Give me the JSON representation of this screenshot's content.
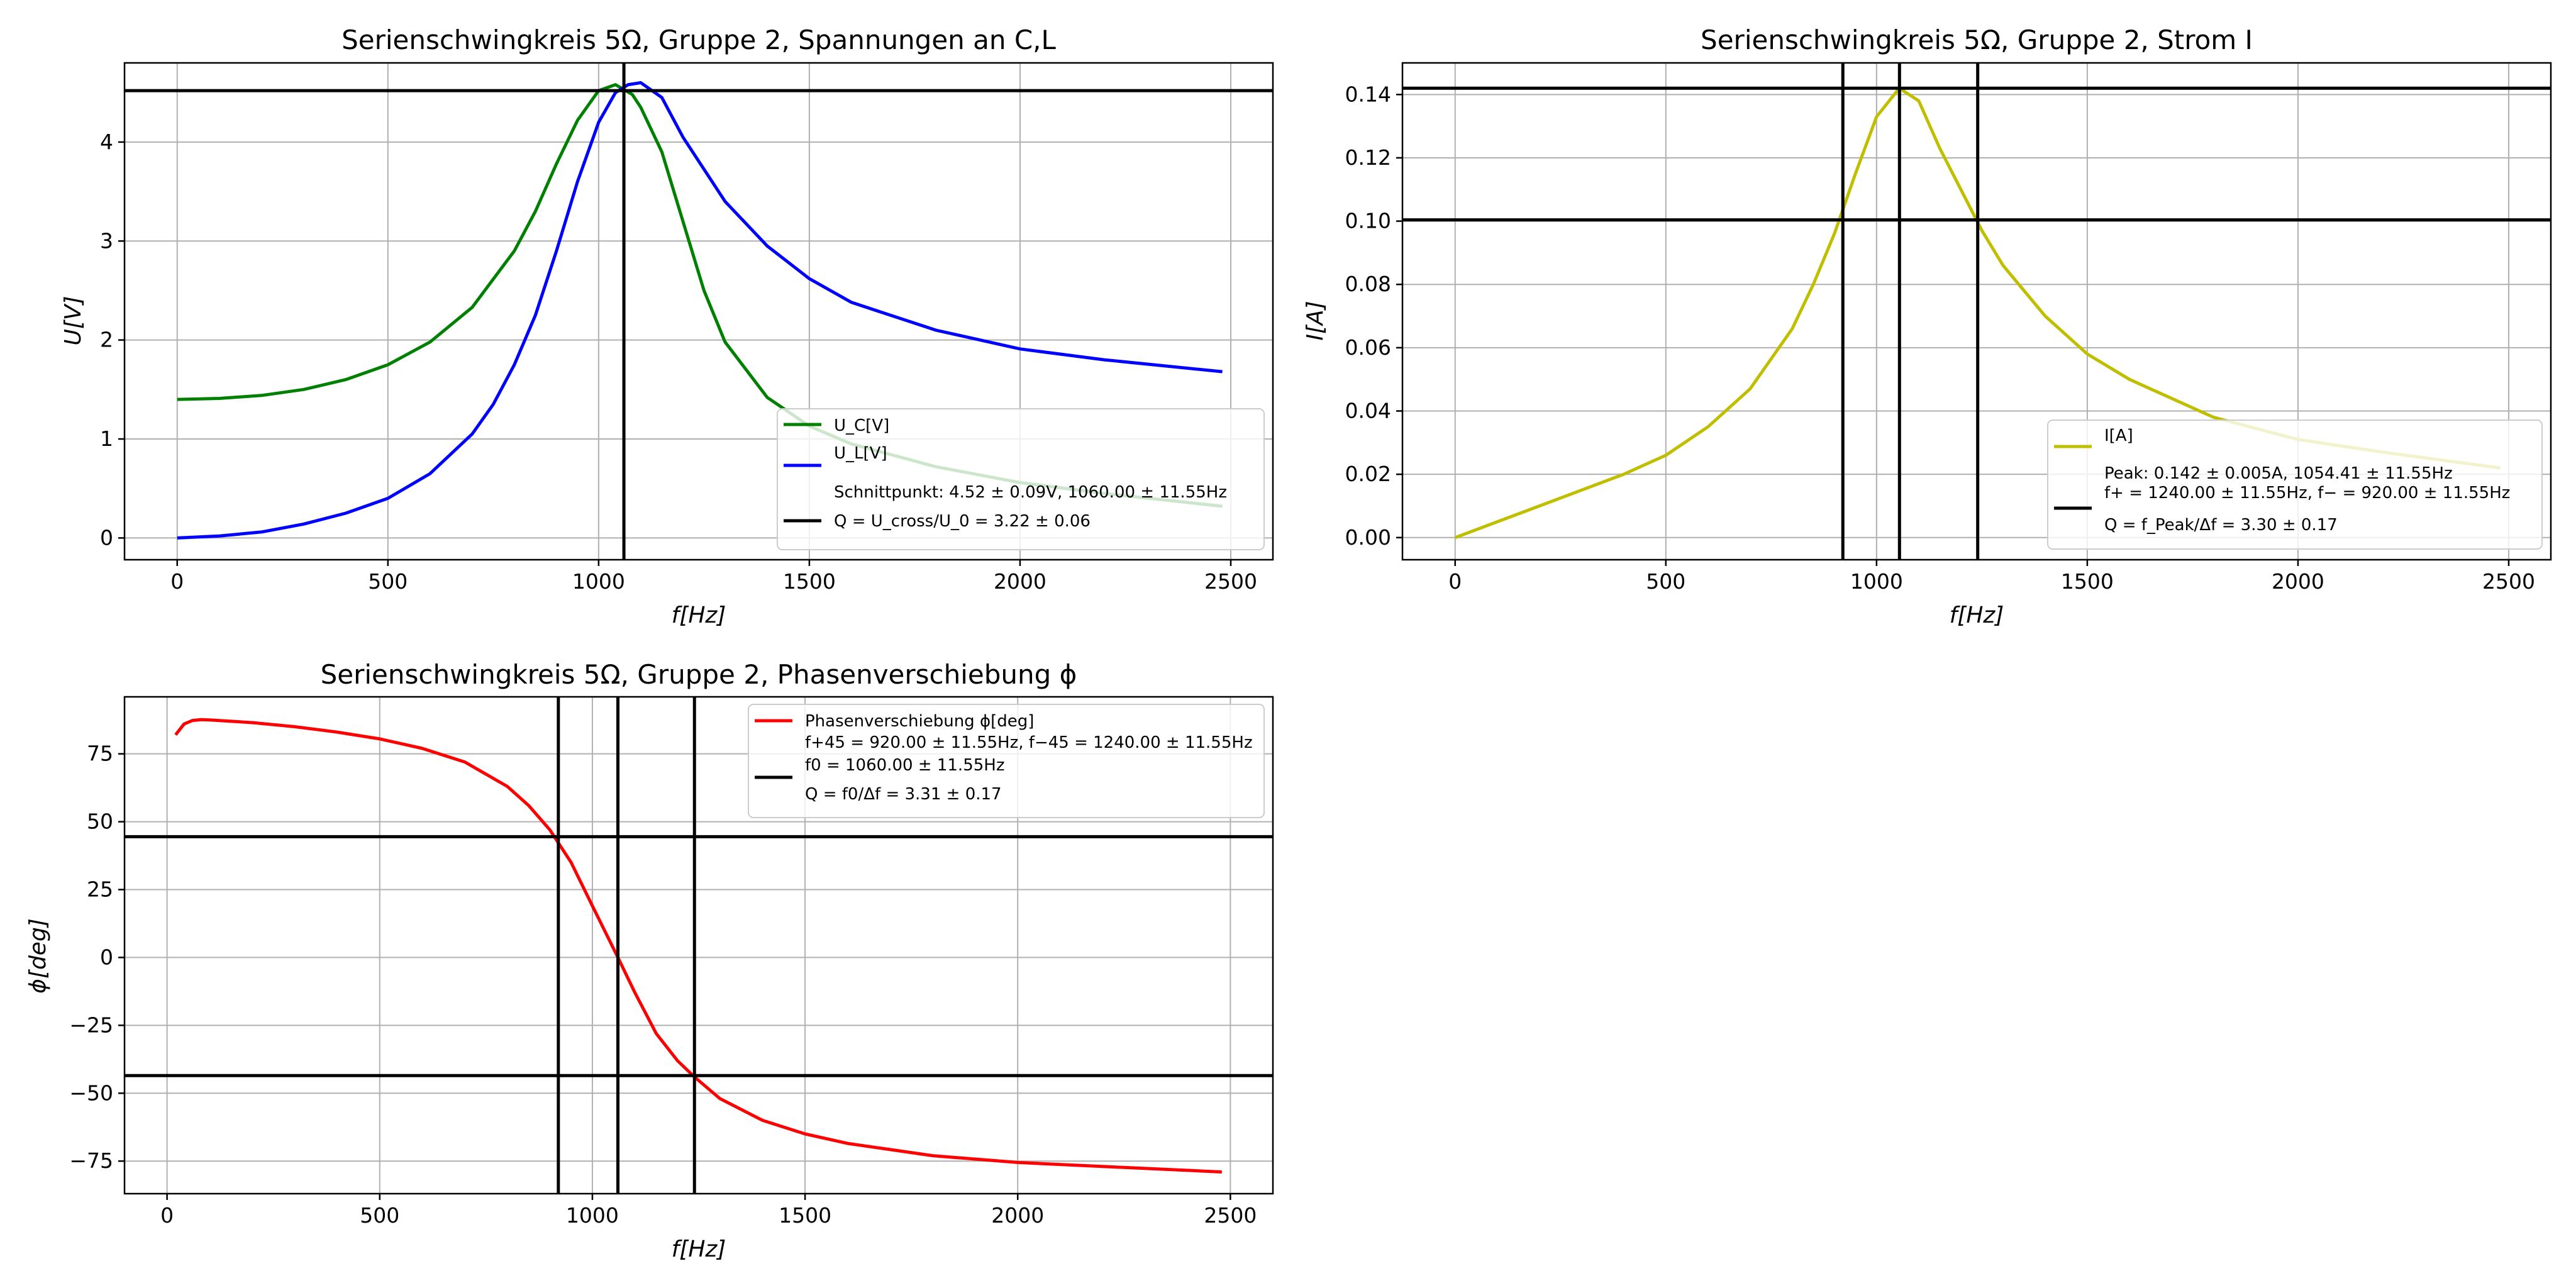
{
  "chart_data": [
    {
      "id": "voltages",
      "type": "line",
      "title": "Serienschwingkreis 5Ω, Gruppe 2, Spannungen an C,L",
      "xlabel": "f[Hz]",
      "ylabel": "U[V]",
      "xlim": [
        -125,
        2600
      ],
      "ylim": [
        -0.22,
        4.8
      ],
      "xticks": [
        0,
        500,
        1000,
        1500,
        2000,
        2500
      ],
      "yticks": [
        0,
        1,
        2,
        3,
        4
      ],
      "grid": true,
      "legend_position": "lower-right",
      "series": [
        {
          "name": "U_C[V]",
          "color": "#008000",
          "x": [
            0,
            100,
            200,
            300,
            400,
            500,
            600,
            700,
            800,
            850,
            900,
            950,
            1000,
            1040,
            1080,
            1100,
            1150,
            1200,
            1250,
            1300,
            1400,
            1500,
            1600,
            1800,
            2000,
            2200,
            2480
          ],
          "y": [
            1.4,
            1.41,
            1.44,
            1.5,
            1.6,
            1.75,
            1.98,
            2.33,
            2.9,
            3.3,
            3.78,
            4.22,
            4.52,
            4.58,
            4.48,
            4.35,
            3.9,
            3.2,
            2.5,
            1.98,
            1.42,
            1.13,
            0.95,
            0.72,
            0.56,
            0.45,
            0.32
          ]
        },
        {
          "name": "U_L[V]",
          "color": "#0000ff",
          "x": [
            0,
            100,
            200,
            300,
            400,
            500,
            600,
            700,
            750,
            800,
            850,
            900,
            950,
            1000,
            1040,
            1070,
            1100,
            1150,
            1200,
            1300,
            1400,
            1500,
            1600,
            1800,
            2000,
            2200,
            2480
          ],
          "y": [
            0.0,
            0.02,
            0.06,
            0.14,
            0.25,
            0.4,
            0.65,
            1.05,
            1.35,
            1.75,
            2.25,
            2.9,
            3.6,
            4.2,
            4.5,
            4.58,
            4.6,
            4.45,
            4.05,
            3.4,
            2.95,
            2.62,
            2.38,
            2.1,
            1.91,
            1.8,
            1.68
          ]
        }
      ],
      "reference_lines": [
        {
          "orientation": "horizontal",
          "value": 4.52
        },
        {
          "orientation": "vertical",
          "value": 1060
        }
      ],
      "legend": [
        {
          "kind": "line",
          "color": "#008000",
          "label": "U_C[V]"
        },
        {
          "kind": "line",
          "color": "#0000ff",
          "label": "U_L[V]"
        },
        {
          "kind": "text",
          "label": "Schnittpunkt: 4.52 ± 0.09V, 1060.00 ± 11.55Hz"
        },
        {
          "kind": "line",
          "color": "#000000",
          "label": "Q = U_cross/U_0 = 3.22 ± 0.06"
        }
      ]
    },
    {
      "id": "current",
      "type": "line",
      "title": "Serienschwingkreis 5Ω, Gruppe 2, Strom I",
      "xlabel": "f[Hz]",
      "ylabel": "I[A]",
      "xlim": [
        -125,
        2600
      ],
      "ylim": [
        -0.007,
        0.15
      ],
      "xticks": [
        0,
        500,
        1000,
        1500,
        2000,
        2500
      ],
      "yticks": [
        0.0,
        0.02,
        0.04,
        0.06,
        0.08,
        0.1,
        0.12,
        0.14
      ],
      "grid": true,
      "legend_position": "lower-right",
      "series": [
        {
          "name": "I[A]",
          "color": "#bfbf00",
          "x": [
            0,
            100,
            200,
            300,
            400,
            500,
            600,
            700,
            800,
            850,
            900,
            950,
            1000,
            1054,
            1100,
            1150,
            1200,
            1250,
            1300,
            1400,
            1500,
            1600,
            1800,
            2000,
            2200,
            2480
          ],
          "y": [
            0.0,
            0.005,
            0.01,
            0.015,
            0.02,
            0.026,
            0.035,
            0.047,
            0.066,
            0.08,
            0.096,
            0.115,
            0.133,
            0.142,
            0.138,
            0.123,
            0.11,
            0.097,
            0.086,
            0.07,
            0.058,
            0.05,
            0.038,
            0.031,
            0.027,
            0.022
          ]
        }
      ],
      "reference_lines": [
        {
          "orientation": "horizontal",
          "value": 0.142
        },
        {
          "orientation": "horizontal",
          "value": 0.1004
        },
        {
          "orientation": "vertical",
          "value": 920
        },
        {
          "orientation": "vertical",
          "value": 1054.41
        },
        {
          "orientation": "vertical",
          "value": 1240
        }
      ],
      "legend": [
        {
          "kind": "line",
          "color": "#bfbf00",
          "label": "I[A]"
        },
        {
          "kind": "text",
          "label": "Peak: 0.142 ± 0.005A, 1054.41 ± 11.55Hz"
        },
        {
          "kind": "line",
          "color": "#000000",
          "label": "f+ = 1240.00 ± 11.55Hz, f− = 920.00 ± 11.55Hz"
        },
        {
          "kind": "text",
          "label": "Q = f_Peak/Δf = 3.30 ± 0.17"
        }
      ]
    },
    {
      "id": "phase",
      "type": "line",
      "title": "Serienschwingkreis 5Ω, Gruppe 2, Phasenverschiebung ϕ",
      "xlabel": "f[Hz]",
      "ylabel": "ϕ[deg]",
      "xlim": [
        -100,
        2600
      ],
      "ylim": [
        -87,
        96
      ],
      "xticks": [
        0,
        500,
        1000,
        1500,
        2000,
        2500
      ],
      "yticks": [
        -75,
        -50,
        -25,
        0,
        25,
        50,
        75
      ],
      "grid": true,
      "legend_position": "upper-right",
      "series": [
        {
          "name": "Phasenverschiebung ϕ[deg]",
          "color": "#ff0000",
          "x": [
            20,
            40,
            60,
            80,
            100,
            200,
            300,
            400,
            500,
            600,
            700,
            800,
            850,
            900,
            950,
            1000,
            1060,
            1100,
            1150,
            1200,
            1240,
            1300,
            1400,
            1500,
            1600,
            1800,
            2000,
            2200,
            2480
          ],
          "y": [
            82,
            86,
            87.3,
            87.6,
            87.5,
            86.5,
            85,
            83,
            80.5,
            77,
            72,
            63,
            56,
            47,
            35,
            19,
            0,
            -13,
            -28,
            -38,
            -44,
            -52,
            -60,
            -65,
            -68.5,
            -73,
            -75.5,
            -77,
            -79
          ]
        }
      ],
      "reference_lines": [
        {
          "orientation": "horizontal",
          "value": 44.5
        },
        {
          "orientation": "horizontal",
          "value": -43.5
        },
        {
          "orientation": "vertical",
          "value": 920
        },
        {
          "orientation": "vertical",
          "value": 1060
        },
        {
          "orientation": "vertical",
          "value": 1240
        }
      ],
      "legend": [
        {
          "kind": "line",
          "color": "#ff0000",
          "label": "Phasenverschiebung ϕ[deg]"
        },
        {
          "kind": "text",
          "label": "f+45 = 920.00 ± 11.55Hz, f−45 = 1240.00 ± 11.55Hz"
        },
        {
          "kind": "line",
          "color": "#000000",
          "label": "f0 = 1060.00 ± 11.55Hz"
        },
        {
          "kind": "text",
          "label": "Q = f0/Δf = 3.31 ± 0.17"
        }
      ]
    }
  ]
}
